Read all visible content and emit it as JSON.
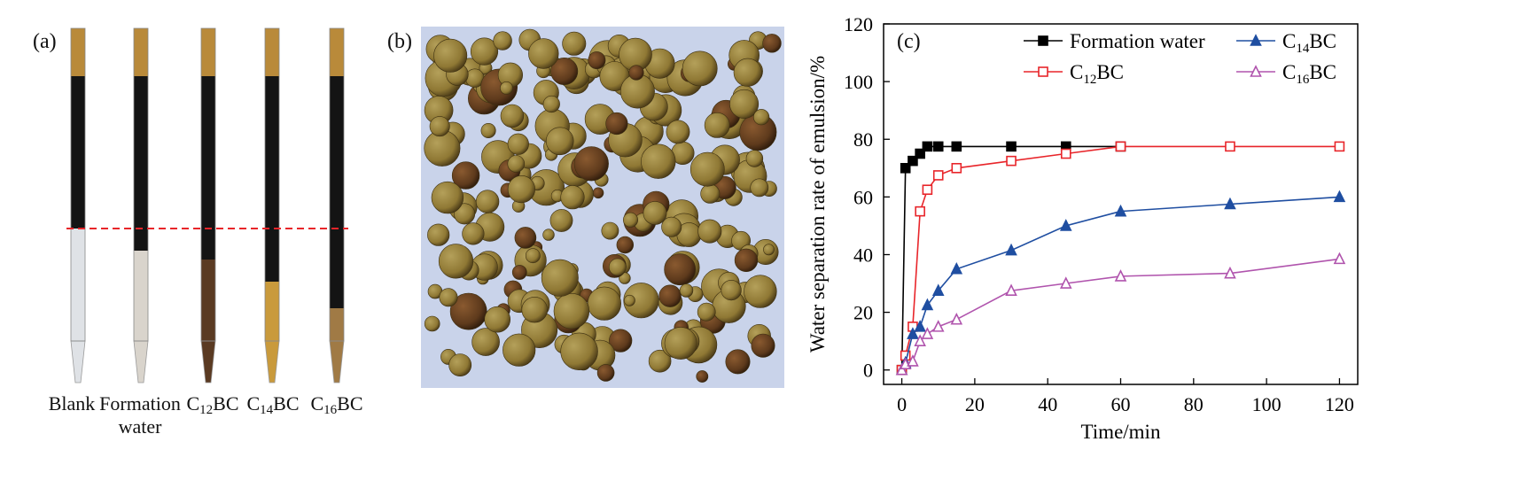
{
  "panels": {
    "a": "(a)",
    "b": "(b)",
    "c": "(c)"
  },
  "tubes": [
    {
      "line1": "Blank",
      "line2": "",
      "sub": "",
      "suffix": "",
      "liquid_color": "#dfe2e6"
    },
    {
      "line1": "Formation",
      "line2": "water",
      "sub": "",
      "suffix": "",
      "liquid_color": "#d9d4cc"
    },
    {
      "line1": "C",
      "line2": "",
      "sub": "12",
      "suffix": "BC",
      "liquid_color": "#5a3a22"
    },
    {
      "line1": "C",
      "line2": "",
      "sub": "14",
      "suffix": "BC",
      "liquid_color": "#c99a3c"
    },
    {
      "line1": "C",
      "line2": "",
      "sub": "16",
      "suffix": "BC",
      "liquid_color": "#a07a45"
    }
  ],
  "chart_data": {
    "type": "line",
    "xlabel": "Time/min",
    "ylabel": "Water separation rate of emulsion/%",
    "xlim": [
      -5,
      125
    ],
    "ylim": [
      -5,
      120
    ],
    "xticks": [
      0,
      20,
      40,
      60,
      80,
      100,
      120
    ],
    "yticks": [
      0,
      20,
      40,
      60,
      80,
      100,
      120
    ],
    "grid": false,
    "legend": "top",
    "series": [
      {
        "name": "Formation water",
        "name_main": "Formation water",
        "name_sub": "",
        "name_suffix": "",
        "color": "#000000",
        "marker": "square-filled",
        "x": [
          0,
          1,
          3,
          5,
          7,
          10,
          15,
          30,
          45,
          60
        ],
        "y": [
          0,
          70,
          72.5,
          75,
          77.5,
          77.5,
          77.5,
          77.5,
          77.5,
          77.5
        ]
      },
      {
        "name": "C12BC",
        "name_main": "C",
        "name_sub": "12",
        "name_suffix": "BC",
        "color": "#e8252a",
        "marker": "square-open",
        "x": [
          0,
          1,
          3,
          5,
          7,
          10,
          15,
          30,
          45,
          60,
          90,
          120
        ],
        "y": [
          0,
          5,
          15,
          55,
          62.5,
          67.5,
          70,
          72.5,
          75,
          77.5,
          77.5,
          77.5
        ]
      },
      {
        "name": "C14BC",
        "name_main": "C",
        "name_sub": "14",
        "name_suffix": "BC",
        "color": "#1f4ea1",
        "marker": "triangle-filled",
        "x": [
          0,
          1,
          3,
          5,
          7,
          10,
          15,
          30,
          45,
          60,
          90,
          120
        ],
        "y": [
          0,
          2.5,
          12.5,
          15,
          22.5,
          27.5,
          35,
          41.5,
          50,
          55,
          57.5,
          60
        ]
      },
      {
        "name": "C16BC",
        "name_main": "C",
        "name_sub": "16",
        "name_suffix": "BC",
        "color": "#b054ad",
        "marker": "triangle-open",
        "x": [
          0,
          1,
          3,
          5,
          7,
          10,
          15,
          30,
          45,
          60,
          90,
          120
        ],
        "y": [
          0,
          2,
          3,
          10,
          12.5,
          15,
          17.5,
          27.5,
          30,
          32.5,
          33.5,
          38.5
        ]
      }
    ]
  }
}
